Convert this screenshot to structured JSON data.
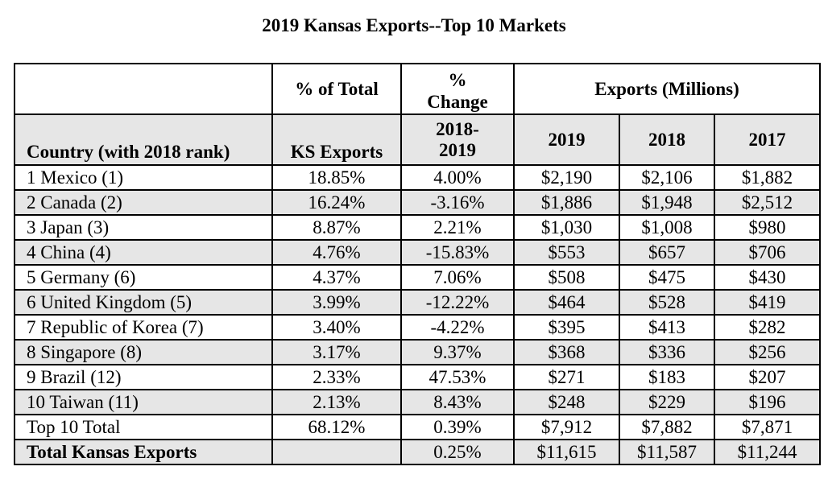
{
  "title": "2019 Kansas Exports--Top 10 Markets",
  "header": {
    "pct_total": "% of Total",
    "pct_symbol": "%",
    "change": "Change",
    "exports_millions": "Exports (Millions)",
    "country": "Country (with 2018 rank)",
    "ks_exports": "KS Exports",
    "period_line1": "2018-",
    "period_line2": "2019",
    "y2019": "2019",
    "y2018": "2018",
    "y2017": "2017"
  },
  "rows": [
    {
      "country": "1 Mexico (1)",
      "pct_total": "18.85%",
      "pct_change": "4.00%",
      "v2019": "$2,190",
      "v2018": "$2,106",
      "v2017": "$1,882"
    },
    {
      "country": "2 Canada (2)",
      "pct_total": "16.24%",
      "pct_change": "-3.16%",
      "v2019": "$1,886",
      "v2018": "$1,948",
      "v2017": "$2,512"
    },
    {
      "country": "3 Japan (3)",
      "pct_total": "8.87%",
      "pct_change": "2.21%",
      "v2019": "$1,030",
      "v2018": "$1,008",
      "v2017": "$980"
    },
    {
      "country": "4 China (4)",
      "pct_total": "4.76%",
      "pct_change": "-15.83%",
      "v2019": "$553",
      "v2018": "$657",
      "v2017": "$706"
    },
    {
      "country": "5 Germany (6)",
      "pct_total": "4.37%",
      "pct_change": "7.06%",
      "v2019": "$508",
      "v2018": "$475",
      "v2017": "$430"
    },
    {
      "country": "6 United Kingdom (5)",
      "pct_total": "3.99%",
      "pct_change": "-12.22%",
      "v2019": "$464",
      "v2018": "$528",
      "v2017": "$419"
    },
    {
      "country": "7 Republic of Korea (7)",
      "pct_total": "3.40%",
      "pct_change": "-4.22%",
      "v2019": "$395",
      "v2018": "$413",
      "v2017": "$282"
    },
    {
      "country": "8 Singapore (8)",
      "pct_total": "3.17%",
      "pct_change": "9.37%",
      "v2019": "$368",
      "v2018": "$336",
      "v2017": "$256"
    },
    {
      "country": "9 Brazil (12)",
      "pct_total": "2.33%",
      "pct_change": "47.53%",
      "v2019": "$271",
      "v2018": "$183",
      "v2017": "$207"
    },
    {
      "country": "10 Taiwan (11)",
      "pct_total": "2.13%",
      "pct_change": "8.43%",
      "v2019": "$248",
      "v2018": "$229",
      "v2017": "$196"
    },
    {
      "country": "Top 10 Total",
      "pct_total": "68.12%",
      "pct_change": "0.39%",
      "v2019": "$7,912",
      "v2018": "$7,882",
      "v2017": "$7,871"
    },
    {
      "country": "Total Kansas Exports",
      "pct_total": "",
      "pct_change": "0.25%",
      "v2019": "$11,615",
      "v2018": "$11,587",
      "v2017": "$11,244"
    }
  ]
}
